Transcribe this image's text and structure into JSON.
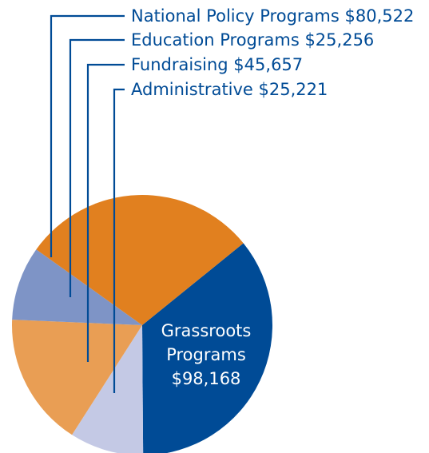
{
  "chart_data": {
    "type": "pie",
    "title": "",
    "slices": [
      {
        "name": "Grassroots Programs",
        "value": 98168,
        "value_label": "$98,168",
        "color": "#004b96"
      },
      {
        "name": "Administrative",
        "value": 25221,
        "value_label": "$25,221",
        "color": "#c4c9e5"
      },
      {
        "name": "Fundraising",
        "value": 45657,
        "value_label": "$45,657",
        "color": "#e99e54"
      },
      {
        "name": "Education Programs",
        "value": 25256,
        "value_label": "$25,256",
        "color": "#7e94c6"
      },
      {
        "name": "National Policy Programs",
        "value": 80522,
        "value_label": "$80,522",
        "color": "#e1801f"
      }
    ],
    "labels": [
      {
        "text": "National Policy Programs  $80,522"
      },
      {
        "text": "Education Programs  $25,256"
      },
      {
        "text": "Fundraising  $45,657"
      },
      {
        "text": "Administrative  $25,221"
      }
    ],
    "inside_label": {
      "lines": [
        "Grassroots",
        "Programs",
        "$98,168"
      ]
    },
    "legend": "none",
    "colors": {
      "text": "#004b96",
      "inside_text": "#ffffff",
      "leader_line": "#004b96"
    }
  }
}
